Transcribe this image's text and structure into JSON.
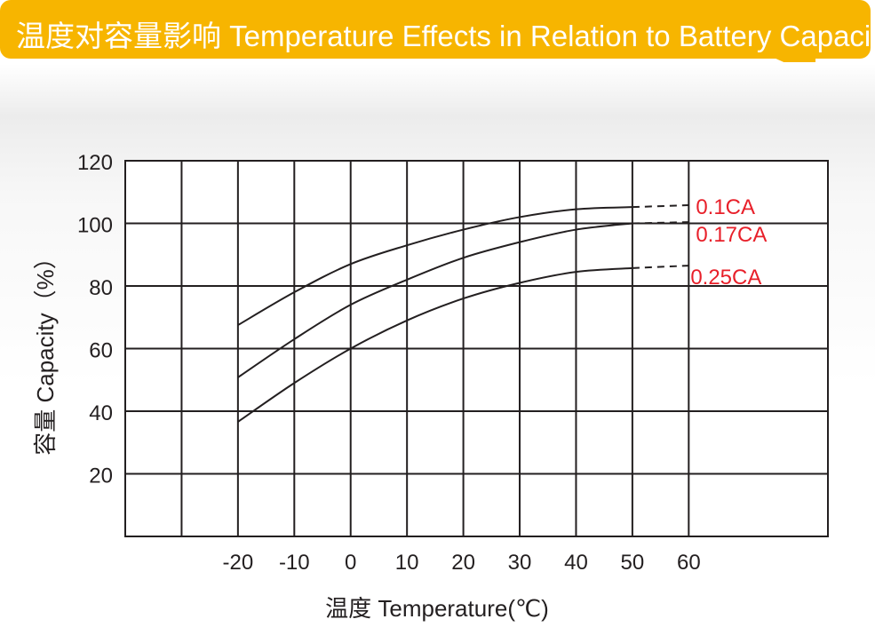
{
  "banner": {
    "title": "温度对容量影响 Temperature Effects in Relation to Battery Capacity",
    "color": "#f7b500"
  },
  "chart_data": {
    "type": "line",
    "title": "温度对容量影响 Temperature Effects in Relation to Battery Capacity",
    "xlabel": "温度 Temperature(℃)",
    "ylabel": "容量 Capacity（%）",
    "xlim": [
      -40,
      84.7
    ],
    "ylim": [
      0,
      120
    ],
    "x_ticks": [
      -20,
      -10,
      0,
      10,
      20,
      30,
      40,
      50,
      60
    ],
    "x_tick_labels": [
      "-20",
      "-10",
      "0",
      "10",
      "20",
      "30",
      "40",
      "50",
      "60"
    ],
    "y_ticks": [
      20,
      40,
      60,
      80,
      100,
      120
    ],
    "y_tick_labels": [
      "20",
      "40",
      "60",
      "80",
      "100",
      "120"
    ],
    "grid": true,
    "series_label_color": "#e8202a",
    "series": [
      {
        "name": "0.1CA",
        "x": [
          -20,
          -10,
          0,
          10,
          20,
          30,
          40,
          50
        ],
        "values": [
          67.5,
          78,
          87,
          93,
          98,
          102,
          104.5,
          105.2
        ],
        "dashed_extension": {
          "x": [
            50,
            60
          ],
          "values": [
            105.2,
            105.8
          ]
        }
      },
      {
        "name": "0.17CA",
        "x": [
          -20,
          -10,
          0,
          10,
          20,
          30,
          40,
          50
        ],
        "values": [
          50.8,
          63,
          74,
          82,
          89,
          94,
          98,
          100
        ],
        "dashed_extension": {
          "x": [
            50,
            60
          ],
          "values": [
            100,
            100.4
          ]
        }
      },
      {
        "name": "0.25CA",
        "x": [
          -20,
          -10,
          0,
          10,
          20,
          30,
          40,
          50
        ],
        "values": [
          36.6,
          49,
          60,
          69,
          76,
          81,
          84.5,
          85.7
        ],
        "dashed_extension": {
          "x": [
            50,
            60
          ],
          "values": [
            85.7,
            86.5
          ]
        }
      }
    ]
  }
}
